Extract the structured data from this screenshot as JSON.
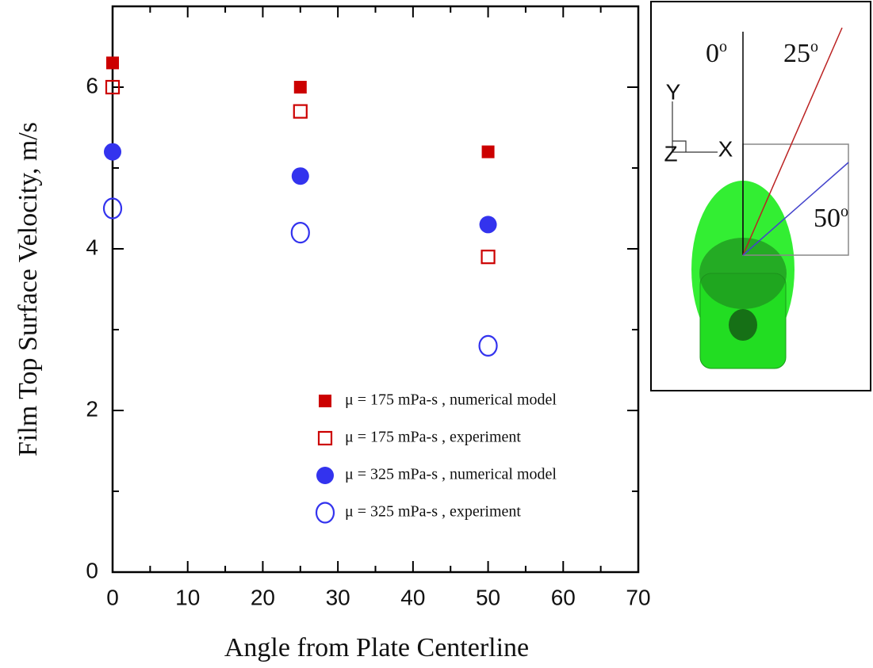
{
  "chart_data": {
    "type": "scatter",
    "y_label": "Film Top Surface Velocity, m/s",
    "x_label": "Angle from Plate Centerline",
    "xlim": [
      0,
      70
    ],
    "xticks": [
      0,
      10,
      20,
      30,
      40,
      50,
      60,
      70
    ],
    "xminor_ticks": [
      5,
      15,
      25,
      35,
      45,
      55,
      65
    ],
    "ylim": [
      0,
      7
    ],
    "yticks": [
      0,
      2,
      4,
      6
    ],
    "yminor_ticks": [
      1,
      3,
      5
    ],
    "series": [
      {
        "name": "μ = 175 mPa-s , numerical model",
        "color": "#cc0000",
        "marker": "square",
        "filled": true,
        "x": [
          0,
          25,
          50
        ],
        "values": [
          6.3,
          6.0,
          5.2
        ]
      },
      {
        "name": "μ = 175 mPa-s , experiment",
        "color": "#cc0000",
        "marker": "square",
        "filled": false,
        "x": [
          0,
          25,
          50
        ],
        "values": [
          6.0,
          5.7,
          3.9
        ]
      },
      {
        "name": "μ = 325 mPa-s , numerical model",
        "color": "#3333ee",
        "marker": "circle",
        "filled": true,
        "x": [
          0,
          25,
          50
        ],
        "values": [
          5.2,
          4.9,
          4.3
        ]
      },
      {
        "name": "μ = 325 mPa-s , experiment",
        "color": "#3333ee",
        "marker": "circle",
        "filled": false,
        "x": [
          0,
          25,
          50
        ],
        "values": [
          4.5,
          4.2,
          2.8
        ]
      }
    ]
  },
  "inset": {
    "angle_labels": [
      {
        "text": "0",
        "sup": "o"
      },
      {
        "text": "25",
        "sup": "o"
      },
      {
        "text": "50",
        "sup": "o"
      }
    ],
    "axis_labels": [
      "Y",
      "X",
      "Z"
    ]
  }
}
